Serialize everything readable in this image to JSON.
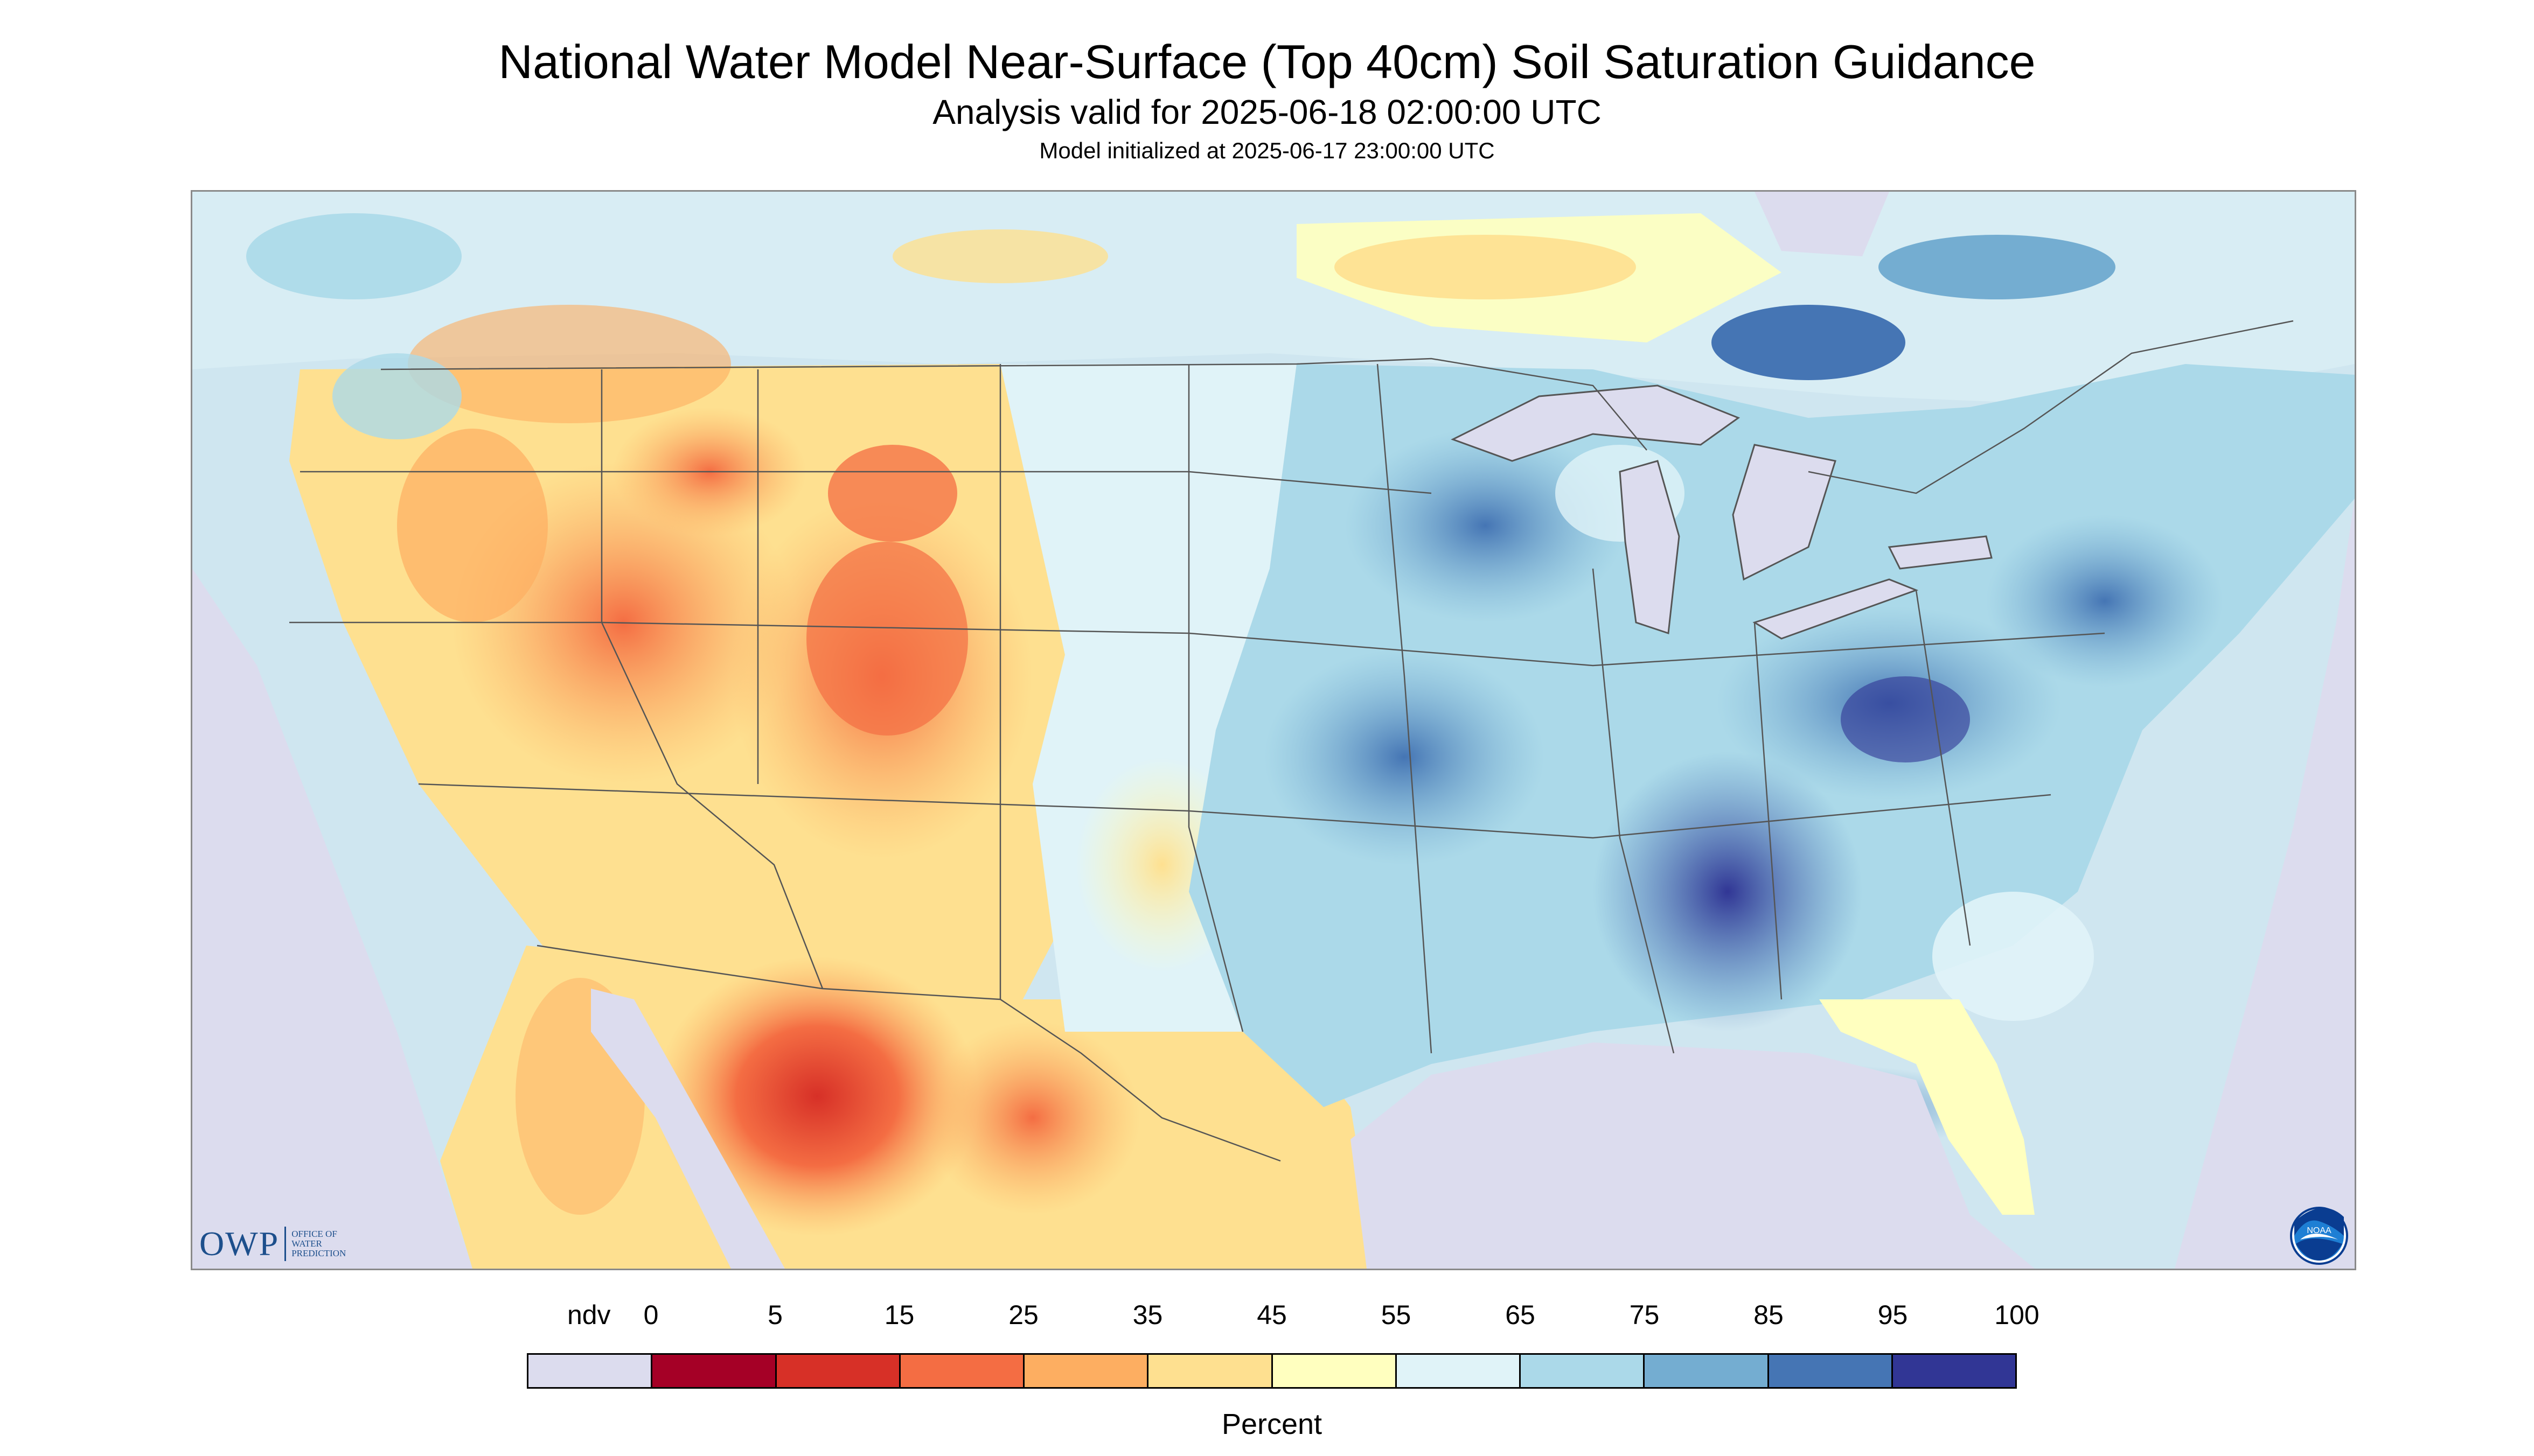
{
  "header": {
    "title": "National Water Model Near-Surface (Top 40cm) Soil Saturation Guidance",
    "subtitle": "Analysis valid for 2025-06-18 02:00:00 UTC",
    "init": "Model initialized at 2025-06-17 23:00:00 UTC"
  },
  "legend": {
    "unit": "Percent",
    "labels": [
      "ndv",
      "0",
      "5",
      "15",
      "25",
      "35",
      "45",
      "55",
      "65",
      "75",
      "85",
      "95",
      "100"
    ],
    "colors": [
      "#dcdcee",
      "#a50026",
      "#d73027",
      "#f46d43",
      "#fdae61",
      "#fee090",
      "#ffffbf",
      "#e0f3f8",
      "#abd9e9",
      "#74add1",
      "#4575b4",
      "#313695"
    ]
  },
  "logos": {
    "owp": "OWP",
    "owp_sub": [
      "Office of",
      "Water",
      "Prediction"
    ],
    "noaa": "NOAA"
  },
  "map": {
    "background_ndv": "#dcdcee",
    "water": "#dcdcee",
    "border_color": "#555555"
  },
  "icons": {
    "owp": "owp-logo-icon",
    "noaa": "noaa-seal-icon"
  }
}
